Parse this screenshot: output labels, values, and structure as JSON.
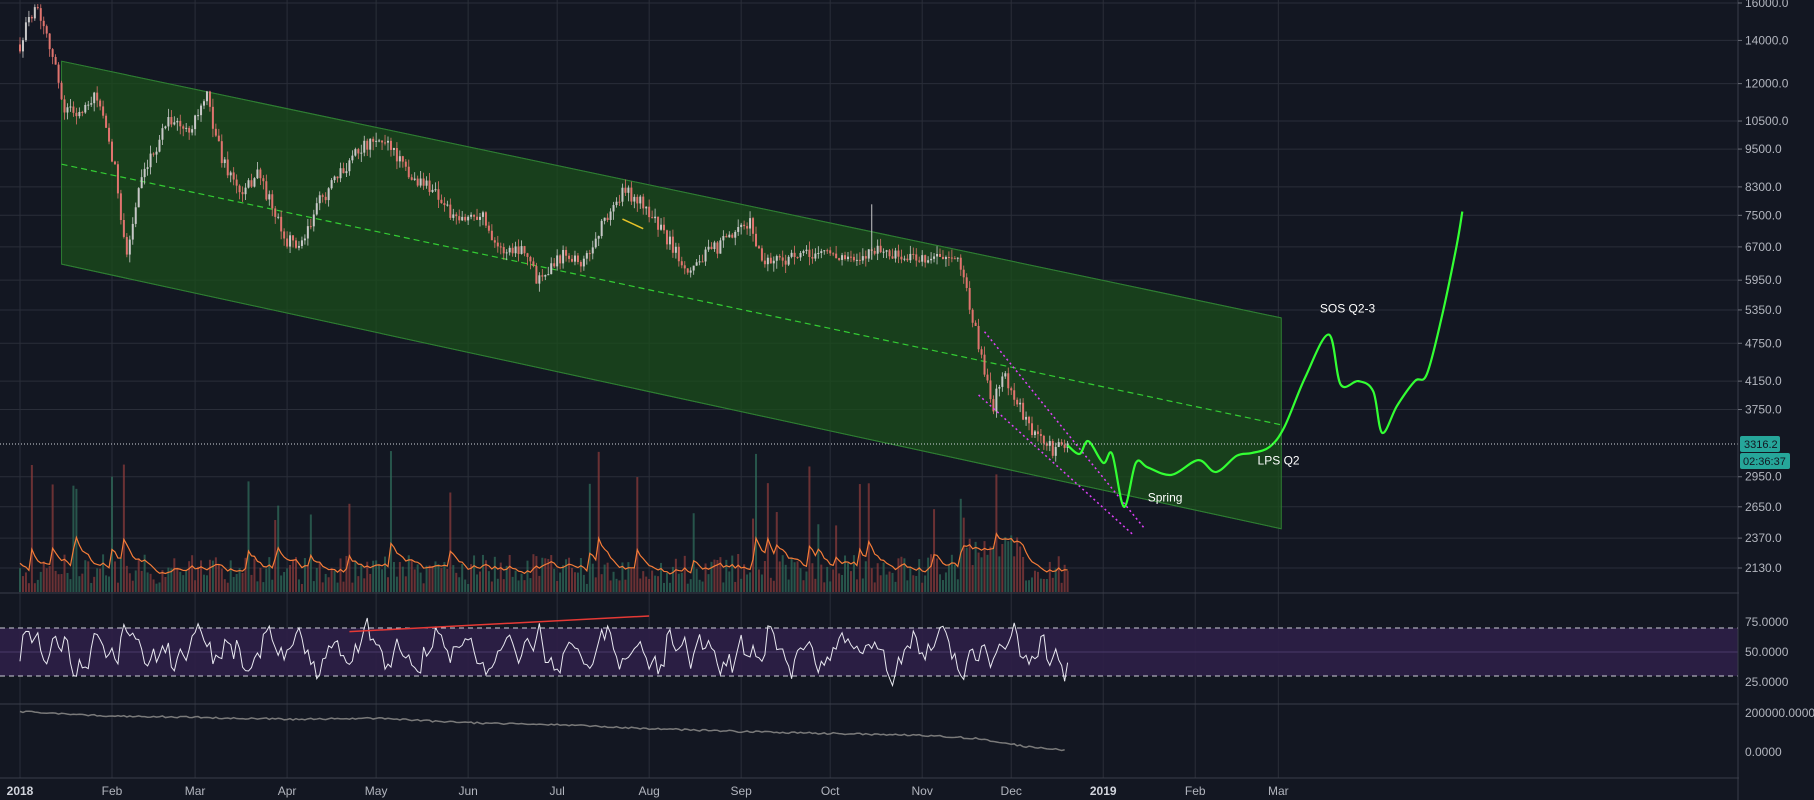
{
  "colors": {
    "background": "#131722",
    "grid": "#2a2e39",
    "channel_fill": "#1b4d1b",
    "channel_line": "#2e7d32",
    "midline": "#33cc33",
    "projection": "#33ff33",
    "wedge": "#e040fb",
    "candle_up": "#c8c8c8",
    "candle_down": "#e0746e",
    "volume_ma": "#f57c38",
    "rsi_line": "#e8e8f0",
    "rsi_band": "#2d1f47",
    "rsi_divergence": "#e53935",
    "obv_line": "#7a7a7a",
    "price_tag": "#26a69a"
  },
  "price_tag": {
    "price": "3316.2",
    "countdown": "02:36:37"
  },
  "annotations": [
    {
      "text": "SOS Q2-3",
      "date": "2019-03-15",
      "price": 5300
    },
    {
      "text": "LPS Q2",
      "date": "2019-02-22",
      "price": 3080
    },
    {
      "text": "Spring",
      "date": "2019-01-16",
      "price": 2700
    }
  ],
  "chart_data": [
    {
      "type": "line",
      "price_axis_ticks": [
        16000.0,
        14000.0,
        12000.0,
        10500.0,
        9500.0,
        8300.0,
        7500.0,
        6700.0,
        5950.0,
        5350.0,
        4750.0,
        4150.0,
        3750.0,
        2950.0,
        2650.0,
        2370.0,
        2130.0
      ],
      "price_tick_labels": [
        "16000.0",
        "14000.0",
        "12000.0",
        "10500.0",
        "9500.0",
        "8300.0",
        "7500.0",
        "6700.0",
        "5950.0",
        "5350.0",
        "4750.0",
        "4150.0",
        "3750.0",
        "2950.0",
        "2650.0",
        "2370.0",
        "2130.0"
      ],
      "time_axis_labels": [
        {
          "date": "2018-01-01",
          "label": "2018",
          "bold": true
        },
        {
          "date": "2018-02-01",
          "label": "Feb"
        },
        {
          "date": "2018-03-01",
          "label": "Mar"
        },
        {
          "date": "2018-04-01",
          "label": "Apr"
        },
        {
          "date": "2018-05-01",
          "label": "May"
        },
        {
          "date": "2018-06-01",
          "label": "Jun"
        },
        {
          "date": "2018-07-01",
          "label": "Jul"
        },
        {
          "date": "2018-08-01",
          "label": "Aug"
        },
        {
          "date": "2018-09-01",
          "label": "Sep"
        },
        {
          "date": "2018-10-01",
          "label": "Oct"
        },
        {
          "date": "2018-11-01",
          "label": "Nov"
        },
        {
          "date": "2018-12-01",
          "label": "Dec"
        },
        {
          "date": "2019-01-01",
          "label": "2019",
          "bold": true
        },
        {
          "date": "2019-02-01",
          "label": "Feb"
        },
        {
          "date": "2019-03-01",
          "label": "Mar"
        }
      ],
      "price_path": [
        [
          "2018-01-01",
          13800
        ],
        [
          "2018-01-06",
          16000
        ],
        [
          "2018-01-10",
          14500
        ],
        [
          "2018-01-16",
          11000
        ],
        [
          "2018-01-22",
          10800
        ],
        [
          "2018-01-27",
          11500
        ],
        [
          "2018-02-02",
          8800
        ],
        [
          "2018-02-06",
          6500
        ],
        [
          "2018-02-10",
          8200
        ],
        [
          "2018-02-20",
          10700
        ],
        [
          "2018-02-26",
          10100
        ],
        [
          "2018-03-05",
          11400
        ],
        [
          "2018-03-10",
          9200
        ],
        [
          "2018-03-17",
          8000
        ],
        [
          "2018-03-22",
          8800
        ],
        [
          "2018-03-31",
          6900
        ],
        [
          "2018-04-06",
          6700
        ],
        [
          "2018-04-12",
          7900
        ],
        [
          "2018-04-20",
          8800
        ],
        [
          "2018-04-24",
          9500
        ],
        [
          "2018-05-05",
          9800
        ],
        [
          "2018-05-12",
          8600
        ],
        [
          "2018-05-20",
          8300
        ],
        [
          "2018-05-28",
          7300
        ],
        [
          "2018-06-05",
          7600
        ],
        [
          "2018-06-12",
          6600
        ],
        [
          "2018-06-20",
          6700
        ],
        [
          "2018-06-24",
          6000
        ],
        [
          "2018-07-04",
          6600
        ],
        [
          "2018-07-10",
          6300
        ],
        [
          "2018-07-17",
          7400
        ],
        [
          "2018-07-24",
          8200
        ],
        [
          "2018-07-31",
          7700
        ],
        [
          "2018-08-07",
          6900
        ],
        [
          "2018-08-14",
          6200
        ],
        [
          "2018-08-20",
          6500
        ],
        [
          "2018-08-30",
          7000
        ],
        [
          "2018-09-04",
          7300
        ],
        [
          "2018-09-08",
          6400
        ],
        [
          "2018-09-20",
          6450
        ],
        [
          "2018-09-30",
          6600
        ],
        [
          "2018-10-11",
          6300
        ],
        [
          "2018-10-15",
          6700
        ],
        [
          "2018-10-25",
          6450
        ],
        [
          "2018-11-06",
          6450
        ],
        [
          "2018-11-14",
          6300
        ],
        [
          "2018-11-20",
          4700
        ],
        [
          "2018-11-25",
          3800
        ],
        [
          "2018-11-28",
          4300
        ],
        [
          "2018-12-07",
          3500
        ],
        [
          "2018-12-15",
          3250
        ],
        [
          "2018-12-20",
          3300
        ]
      ],
      "channel": {
        "start_date": "2018-01-15",
        "end_date": "2019-03-02",
        "upper": [
          13000,
          5200
        ],
        "mid": [
          9000,
          3550
        ],
        "lower": [
          6300,
          2450
        ]
      },
      "wedge_lines": [
        [
          [
            "2018-11-22",
            4950
          ],
          [
            "2019-01-15",
            2450
          ]
        ],
        [
          [
            "2018-11-20",
            3950
          ],
          [
            "2019-01-11",
            2400
          ]
        ]
      ],
      "projection_path": [
        [
          "2018-12-20",
          3300
        ],
        [
          "2018-12-24",
          3200
        ],
        [
          "2018-12-27",
          3350
        ],
        [
          "2019-01-01",
          3100
        ],
        [
          "2019-01-04",
          3200
        ],
        [
          "2019-01-08",
          2650
        ],
        [
          "2019-01-12",
          3100
        ],
        [
          "2019-01-16",
          3050
        ],
        [
          "2019-01-24",
          2970
        ],
        [
          "2019-02-02",
          3130
        ],
        [
          "2019-02-08",
          3000
        ],
        [
          "2019-02-15",
          3180
        ],
        [
          "2019-02-20",
          3210
        ],
        [
          "2019-02-26",
          3280
        ],
        [
          "2019-03-03",
          3520
        ],
        [
          "2019-03-10",
          4200
        ],
        [
          "2019-03-18",
          4900
        ],
        [
          "2019-03-22",
          4100
        ],
        [
          "2019-03-28",
          4150
        ],
        [
          "2019-04-02",
          4000
        ],
        [
          "2019-04-05",
          3450
        ],
        [
          "2019-04-10",
          3800
        ],
        [
          "2019-04-16",
          4150
        ],
        [
          "2019-04-20",
          4250
        ],
        [
          "2019-04-25",
          5200
        ],
        [
          "2019-04-30",
          6700
        ],
        [
          "2019-05-02",
          7600
        ]
      ]
    },
    {
      "type": "line",
      "name": "",
      "ticks": [
        75.0,
        50.0,
        25.0
      ],
      "tick_labels": [
        "75.0000",
        "50.0000",
        "25.0000"
      ],
      "band": [
        30,
        70
      ],
      "divergence_line": [
        [
          "2018-04-22",
          67
        ],
        [
          "2018-08-01",
          80
        ]
      ]
    },
    {
      "type": "line",
      "name": "",
      "ticks": [
        200000.0,
        0.0
      ],
      "tick_labels": [
        "200000.0000",
        "0.0000"
      ],
      "path": [
        [
          "2018-01-01",
          208000
        ],
        [
          "2018-01-15",
          195000
        ],
        [
          "2018-02-01",
          185000
        ],
        [
          "2018-03-01",
          178000
        ],
        [
          "2018-04-01",
          168000
        ],
        [
          "2018-05-01",
          172000
        ],
        [
          "2018-06-01",
          150000
        ],
        [
          "2018-07-01",
          140000
        ],
        [
          "2018-08-01",
          120000
        ],
        [
          "2018-09-01",
          105000
        ],
        [
          "2018-10-01",
          95000
        ],
        [
          "2018-11-01",
          85000
        ],
        [
          "2018-11-20",
          70000
        ],
        [
          "2018-12-05",
          30000
        ],
        [
          "2018-12-20",
          8000
        ]
      ]
    }
  ]
}
